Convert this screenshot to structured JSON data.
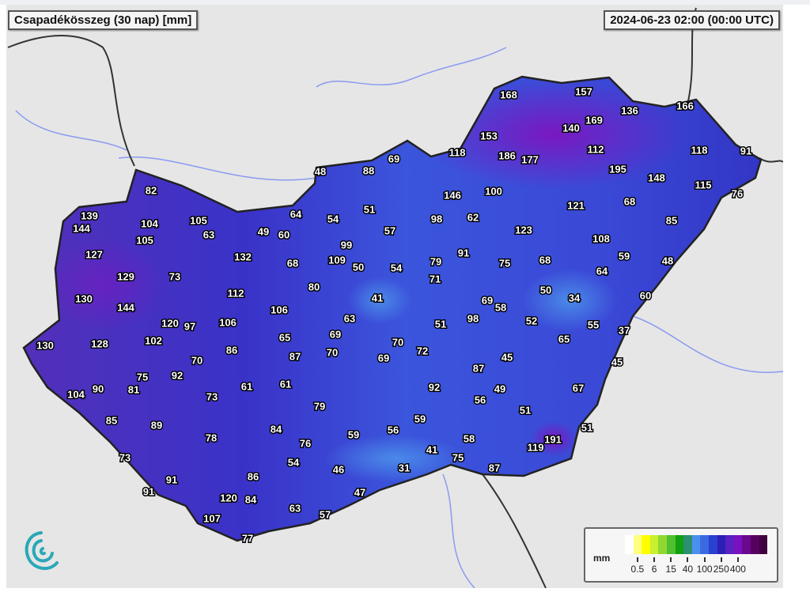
{
  "header": {
    "title": "Csapadékösszeg (30 nap) [mm]",
    "timestamp": "2024-06-23 02:00 (00:00 UTC)"
  },
  "legend": {
    "unit": "mm",
    "ticks": [
      "0.5",
      "6",
      "15",
      "40",
      "100",
      "250",
      "400"
    ],
    "colors": [
      "#ffffff",
      "#ffff80",
      "#ffff00",
      "#c8f030",
      "#90d830",
      "#50c030",
      "#10a010",
      "#2a9070",
      "#4a90f0",
      "#3a6ae0",
      "#2a40d0",
      "#2a20b8",
      "#5a20c0",
      "#7a10c0",
      "#6a0890",
      "#580060",
      "#400040"
    ]
  },
  "map": {
    "land_color": "#e8e8e8",
    "river_color": "#8a9af0",
    "border_color": "#222222",
    "stations": [
      168,
      157,
      136,
      166,
      169,
      140,
      153,
      112,
      118,
      91,
      118,
      186,
      177,
      195,
      148,
      115,
      76,
      69,
      48,
      88,
      146,
      100,
      121,
      68,
      85,
      82,
      139,
      144,
      104,
      105,
      64,
      54,
      51,
      98,
      62,
      123,
      108,
      105,
      63,
      49,
      60,
      57,
      99,
      127,
      132,
      68,
      109,
      50,
      54,
      79,
      91,
      75,
      68,
      59,
      48,
      64,
      129,
      73,
      80,
      71,
      50,
      34,
      60,
      130,
      144,
      112,
      41,
      69,
      58,
      106,
      63,
      51,
      98,
      52,
      55,
      37,
      120,
      97,
      106,
      65,
      69,
      65,
      130,
      128,
      102,
      86,
      87,
      70,
      70,
      72,
      69,
      45,
      45,
      70,
      87,
      75,
      92,
      61,
      61,
      92,
      49,
      67,
      104,
      90,
      81,
      73,
      56,
      79,
      85,
      89,
      59,
      51,
      84,
      56,
      59,
      78,
      76,
      58,
      51,
      191,
      119,
      41,
      73,
      54,
      75,
      46,
      31,
      87,
      91,
      86,
      91,
      47,
      120,
      84,
      63,
      57,
      107,
      77
    ]
  }
}
